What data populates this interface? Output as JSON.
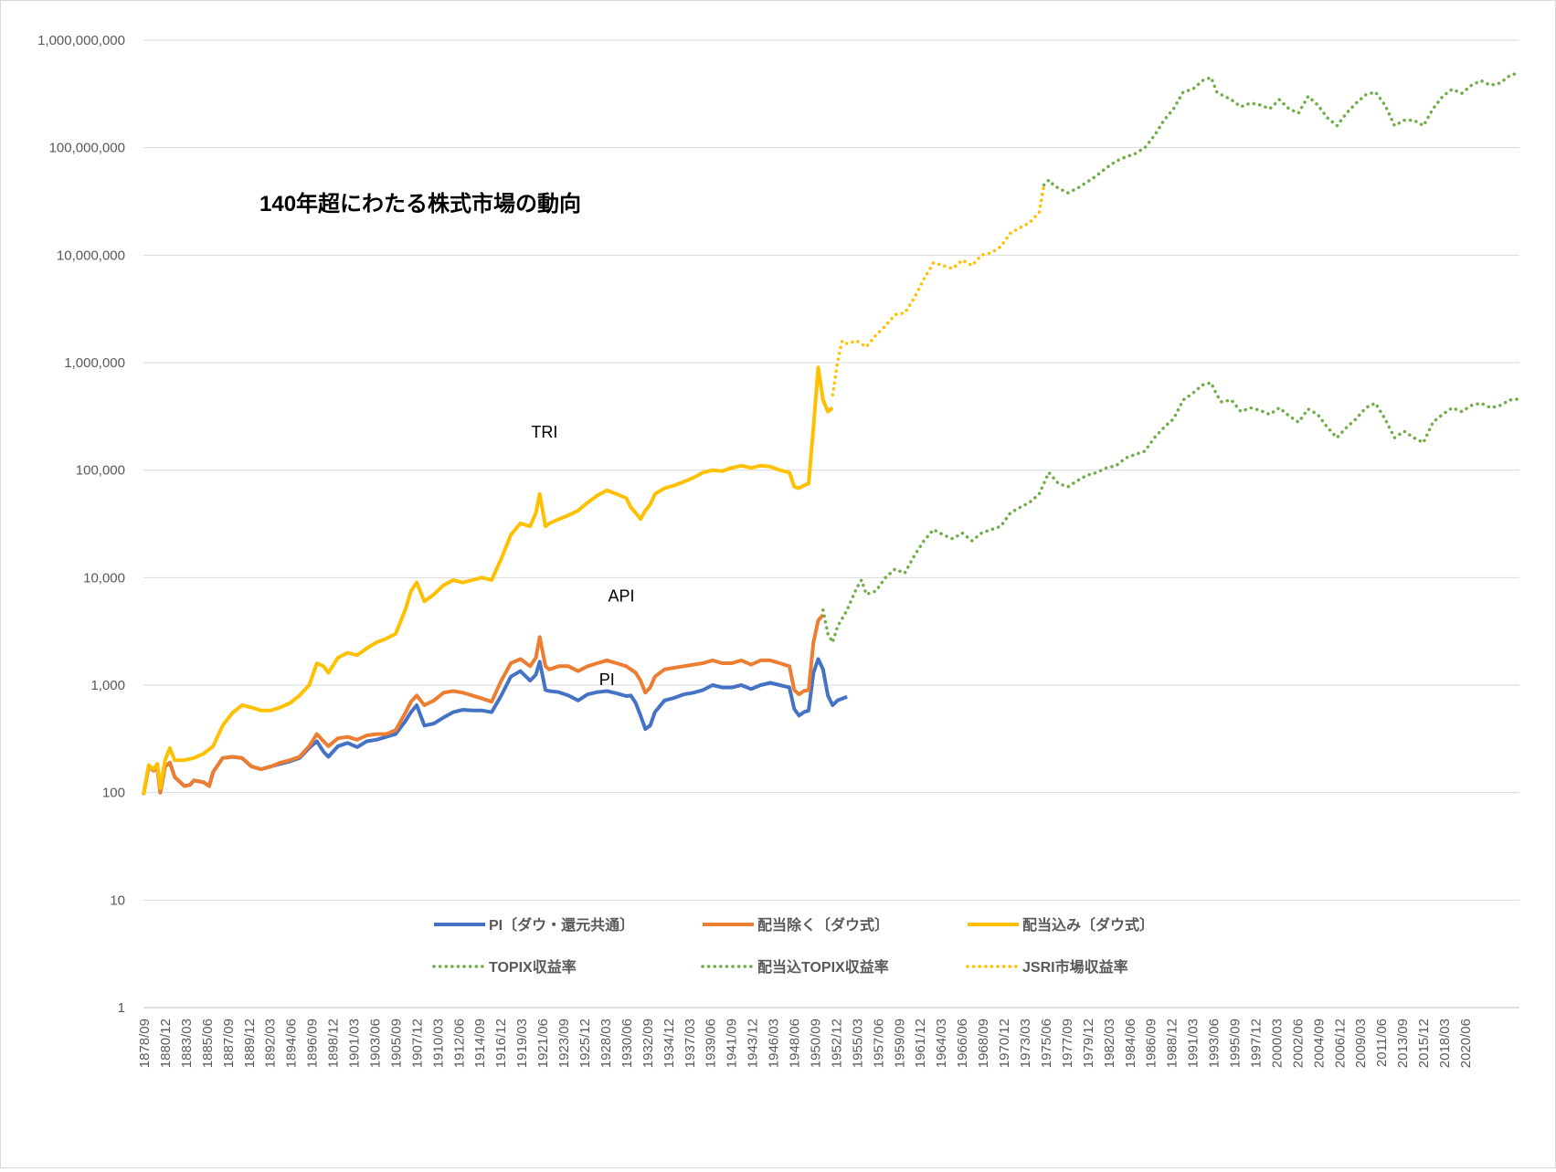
{
  "chart_data": {
    "type": "line",
    "title": "140年超にわたる株式市場の動向",
    "y_scale": "log",
    "ylim": [
      1,
      1000000000
    ],
    "y_ticks": [
      "1",
      "10",
      "100",
      "1,000",
      "10,000",
      "100,000",
      "1,000,000",
      "10,000,000",
      "100,000,000",
      "1,000,000,000"
    ],
    "x_range": [
      1878.75,
      2022.0
    ],
    "x_ticks": [
      "1878/09",
      "1880/12",
      "1883/03",
      "1885/06",
      "1887/09",
      "1889/12",
      "1892/03",
      "1894/06",
      "1896/09",
      "1898/12",
      "1901/03",
      "1903/06",
      "1905/09",
      "1907/12",
      "1910/03",
      "1912/06",
      "1914/09",
      "1916/12",
      "1919/03",
      "1921/06",
      "1923/09",
      "1925/12",
      "1928/03",
      "1930/06",
      "1932/09",
      "1934/12",
      "1937/03",
      "1939/06",
      "1941/09",
      "1943/12",
      "1946/03",
      "1948/06",
      "1950/09",
      "1952/12",
      "1955/03",
      "1957/06",
      "1959/09",
      "1961/12",
      "1964/03",
      "1966/06",
      "1968/09",
      "1970/12",
      "1973/03",
      "1975/06",
      "1977/09",
      "1979/12",
      "1982/03",
      "1984/06",
      "1986/09",
      "1988/12",
      "1991/03",
      "1993/06",
      "1995/09",
      "1997/12",
      "2000/03",
      "2002/06",
      "2004/09",
      "2006/12",
      "2009/03",
      "2011/06",
      "2013/09",
      "2015/12",
      "2018/03",
      "2020/06"
    ],
    "grid": true,
    "legend_position": "bottom",
    "annotations": [
      {
        "text": "TRI",
        "x": 1920.5,
        "y": 200000
      },
      {
        "text": "API",
        "x": 1928.5,
        "y": 6000
      },
      {
        "text": "PI",
        "x": 1927.0,
        "y": 1000
      }
    ],
    "series": [
      {
        "name": "PI〔ダウ・還元共通〕",
        "color": "#4472C4",
        "style": "solid",
        "x": [
          1878.75,
          1879.3,
          1879.8,
          1880.2,
          1880.5,
          1881,
          1881.5,
          1882,
          1883,
          1883.6,
          1884,
          1885,
          1885.6,
          1886,
          1887,
          1888,
          1889,
          1890,
          1891,
          1892,
          1893,
          1894,
          1895,
          1896,
          1896.8,
          1897.5,
          1898,
          1899,
          1900,
          1901,
          1902,
          1903,
          1904,
          1905,
          1906,
          1906.6,
          1907.2,
          1908,
          1909,
          1910,
          1911,
          1912,
          1913,
          1914,
          1915,
          1916,
          1917,
          1918,
          1919,
          1919.6,
          1920,
          1920.6,
          1921,
          1922,
          1923,
          1924,
          1925,
          1926,
          1927,
          1928,
          1929,
          1929.5,
          1930,
          1930.5,
          1931,
          1931.5,
          1932,
          1933,
          1934,
          1935,
          1936,
          1937,
          1938,
          1939,
          1940,
          1941,
          1942,
          1943,
          1944,
          1945,
          1946,
          1946.5,
          1947,
          1947.5,
          1948,
          1948.5,
          1949,
          1949.5,
          1950,
          1950.5,
          1951,
          1952
        ],
        "y": [
          95,
          175,
          160,
          170,
          100,
          175,
          190,
          140,
          115,
          118,
          130,
          125,
          115,
          155,
          210,
          215,
          210,
          175,
          165,
          175,
          185,
          195,
          210,
          260,
          300,
          240,
          215,
          270,
          290,
          265,
          300,
          310,
          330,
          350,
          460,
          560,
          650,
          420,
          440,
          500,
          560,
          590,
          580,
          580,
          560,
          800,
          1200,
          1350,
          1100,
          1250,
          1650,
          900,
          880,
          860,
          800,
          720,
          820,
          860,
          880,
          840,
          790,
          800,
          680,
          520,
          390,
          420,
          560,
          720,
          760,
          820,
          850,
          900,
          1000,
          950,
          950,
          1000,
          920,
          1000,
          1050,
          1000,
          950,
          600,
          520,
          560,
          580,
          1300,
          1750,
          1400,
          800,
          650,
          720,
          780
        ]
      },
      {
        "name": "配当除く〔ダウ式〕",
        "color": "#ED7D31",
        "style": "solid",
        "x": [
          1878.75,
          1879.3,
          1879.8,
          1880.2,
          1880.5,
          1881,
          1881.5,
          1882,
          1883,
          1883.6,
          1884,
          1885,
          1885.6,
          1886,
          1887,
          1888,
          1889,
          1890,
          1891,
          1892,
          1893,
          1894,
          1895,
          1896,
          1896.8,
          1897.5,
          1898,
          1899,
          1900,
          1901,
          1902,
          1903,
          1904,
          1905,
          1906,
          1906.6,
          1907.2,
          1908,
          1909,
          1910,
          1911,
          1912,
          1913,
          1914,
          1915,
          1916,
          1917,
          1918,
          1919,
          1919.6,
          1920,
          1920.6,
          1921,
          1922,
          1923,
          1924,
          1925,
          1926,
          1927,
          1928,
          1929,
          1929.5,
          1930,
          1930.5,
          1931,
          1931.5,
          1932,
          1933,
          1934,
          1935,
          1936,
          1937,
          1938,
          1939,
          1940,
          1941,
          1942,
          1943,
          1944,
          1945,
          1946,
          1946.5,
          1947,
          1947.5,
          1948,
          1948.5,
          1949,
          1949.5
        ],
        "y": [
          95,
          175,
          160,
          170,
          100,
          175,
          190,
          140,
          115,
          118,
          130,
          125,
          115,
          155,
          210,
          215,
          210,
          175,
          165,
          175,
          190,
          200,
          215,
          270,
          350,
          300,
          270,
          320,
          330,
          310,
          340,
          350,
          350,
          380,
          550,
          700,
          800,
          650,
          720,
          850,
          880,
          850,
          800,
          750,
          700,
          1100,
          1600,
          1750,
          1500,
          1800,
          2800,
          1500,
          1400,
          1500,
          1500,
          1350,
          1500,
          1600,
          1700,
          1600,
          1500,
          1400,
          1300,
          1100,
          850,
          950,
          1200,
          1400,
          1450,
          1500,
          1550,
          1600,
          1700,
          1600,
          1600,
          1700,
          1550,
          1700,
          1700,
          1600,
          1500,
          900,
          820,
          880,
          900,
          2500,
          4000,
          4500
        ]
      },
      {
        "name": "配当込み〔ダウ式〕",
        "color": "#FFC000",
        "style": "solid",
        "x": [
          1878.75,
          1879.3,
          1879.8,
          1880.2,
          1880.5,
          1881,
          1881.5,
          1882,
          1883,
          1884,
          1885,
          1886,
          1887,
          1888,
          1889,
          1890,
          1891,
          1892,
          1893,
          1894,
          1895,
          1896,
          1896.8,
          1897.5,
          1898,
          1899,
          1900,
          1901,
          1902,
          1903,
          1904,
          1905,
          1906,
          1906.6,
          1907.2,
          1908,
          1909,
          1910,
          1911,
          1912,
          1913,
          1914,
          1915,
          1916,
          1917,
          1918,
          1919,
          1919.6,
          1920,
          1920.6,
          1921,
          1922,
          1923,
          1924,
          1925,
          1926,
          1927,
          1928,
          1929,
          1929.5,
          1930,
          1930.5,
          1931,
          1931.5,
          1932,
          1933,
          1934,
          1935,
          1936,
          1937,
          1938,
          1939,
          1940,
          1941,
          1942,
          1943,
          1944,
          1945,
          1946,
          1946.5,
          1947,
          1947.5,
          1948,
          1948.5,
          1949,
          1949.5,
          1950,
          1950.5
        ],
        "y": [
          95,
          180,
          165,
          185,
          110,
          200,
          260,
          200,
          200,
          210,
          230,
          270,
          420,
          550,
          650,
          620,
          580,
          580,
          620,
          680,
          800,
          1000,
          1600,
          1500,
          1300,
          1800,
          2000,
          1900,
          2200,
          2500,
          2700,
          3000,
          5000,
          7500,
          9000,
          6000,
          7000,
          8500,
          9500,
          9000,
          9500,
          10000,
          9500,
          15000,
          25000,
          32000,
          30000,
          40000,
          60000,
          30000,
          32000,
          35000,
          38000,
          42000,
          50000,
          58000,
          65000,
          60000,
          55000,
          45000,
          40000,
          35000,
          42000,
          48000,
          60000,
          68000,
          72000,
          78000,
          85000,
          95000,
          100000,
          98000,
          105000,
          110000,
          105000,
          110000,
          108000,
          100000,
          95000,
          70000,
          68000,
          72000,
          75000,
          250000,
          900000,
          450000,
          350000,
          380000
        ]
      },
      {
        "name": "TOPIX収益率",
        "color": "#70AD47",
        "style": "dotted",
        "x": [
          1949.5,
          1950,
          1950.5,
          1951,
          1952,
          1953,
          1953.5,
          1954,
          1955,
          1956,
          1957,
          1958,
          1959,
          1960,
          1961,
          1962,
          1963,
          1964,
          1965,
          1966,
          1967,
          1968,
          1969,
          1970,
          1971,
          1972,
          1973,
          1974,
          1975,
          1976,
          1977,
          1978,
          1979,
          1980,
          1981,
          1982,
          1983,
          1984,
          1985,
          1986,
          1987,
          1988,
          1989,
          1989.9,
          1990.5,
          1991,
          1992,
          1993,
          1994,
          1995,
          1996,
          1997,
          1998,
          1999,
          2000,
          2001,
          2002,
          2003,
          2004,
          2005,
          2006,
          2007,
          2008,
          2009,
          2010,
          2011,
          2012,
          2013,
          2014,
          2015,
          2016,
          2017,
          2018,
          2019,
          2020,
          2021,
          2022
        ],
        "y": [
          5000,
          3000,
          2500,
          3500,
          5000,
          8000,
          9500,
          7000,
          7500,
          10000,
          12000,
          11000,
          16000,
          22000,
          28000,
          25000,
          23000,
          26000,
          22000,
          26000,
          28000,
          30000,
          40000,
          45000,
          50000,
          60000,
          95000,
          75000,
          70000,
          80000,
          90000,
          95000,
          105000,
          110000,
          130000,
          140000,
          150000,
          200000,
          250000,
          300000,
          450000,
          520000,
          620000,
          650000,
          500000,
          430000,
          450000,
          350000,
          380000,
          360000,
          330000,
          380000,
          320000,
          280000,
          370000,
          330000,
          250000,
          200000,
          250000,
          300000,
          380000,
          420000,
          300000,
          200000,
          230000,
          200000,
          180000,
          280000,
          330000,
          380000,
          350000,
          400000,
          420000,
          380000,
          400000,
          450000,
          460000
        ]
      },
      {
        "name": "配当込TOPIX収益率",
        "color": "#70AD47",
        "style": "dotted",
        "x": [
          1972.5,
          1973,
          1973.5,
          1974,
          1975,
          1976,
          1977,
          1978,
          1979,
          1980,
          1981,
          1982,
          1983,
          1984,
          1985,
          1986,
          1987,
          1988,
          1989,
          1989.9,
          1990.5,
          1991,
          1992,
          1993,
          1994,
          1995,
          1996,
          1997,
          1998,
          1999,
          2000,
          2001,
          2002,
          2003,
          2004,
          2005,
          2006,
          2007,
          2008,
          2009,
          2010,
          2011,
          2012,
          2013,
          2014,
          2015,
          2016,
          2017,
          2018,
          2019,
          2020,
          2021,
          2022
        ],
        "y": [
          45000000,
          50000000,
          45000000,
          42000000,
          38000000,
          42000000,
          48000000,
          55000000,
          65000000,
          75000000,
          82000000,
          88000000,
          100000000,
          130000000,
          180000000,
          230000000,
          330000000,
          350000000,
          420000000,
          450000000,
          330000000,
          310000000,
          280000000,
          240000000,
          260000000,
          250000000,
          230000000,
          280000000,
          230000000,
          210000000,
          300000000,
          250000000,
          190000000,
          160000000,
          210000000,
          260000000,
          310000000,
          330000000,
          250000000,
          160000000,
          180000000,
          180000000,
          160000000,
          230000000,
          300000000,
          350000000,
          320000000,
          380000000,
          420000000,
          380000000,
          400000000,
          470000000,
          500000000
        ]
      },
      {
        "name": "JSRI市場収益率",
        "color": "#FFC000",
        "style": "dotted",
        "x": [
          1950.5,
          1951,
          1951.5,
          1952,
          1953,
          1954,
          1955,
          1956,
          1957,
          1958,
          1959,
          1960,
          1961,
          1962,
          1963,
          1964,
          1965,
          1966,
          1967,
          1968,
          1969,
          1970,
          1971,
          1972,
          1972.5
        ],
        "y": [
          500000,
          1000000,
          1600000,
          1500000,
          1600000,
          1400000,
          1800000,
          2200000,
          2800000,
          2900000,
          4000000,
          6000000,
          8500000,
          8000000,
          7500000,
          9000000,
          8000000,
          10000000,
          10500000,
          12000000,
          16000000,
          18000000,
          20000000,
          25000000,
          45000000
        ]
      }
    ]
  }
}
